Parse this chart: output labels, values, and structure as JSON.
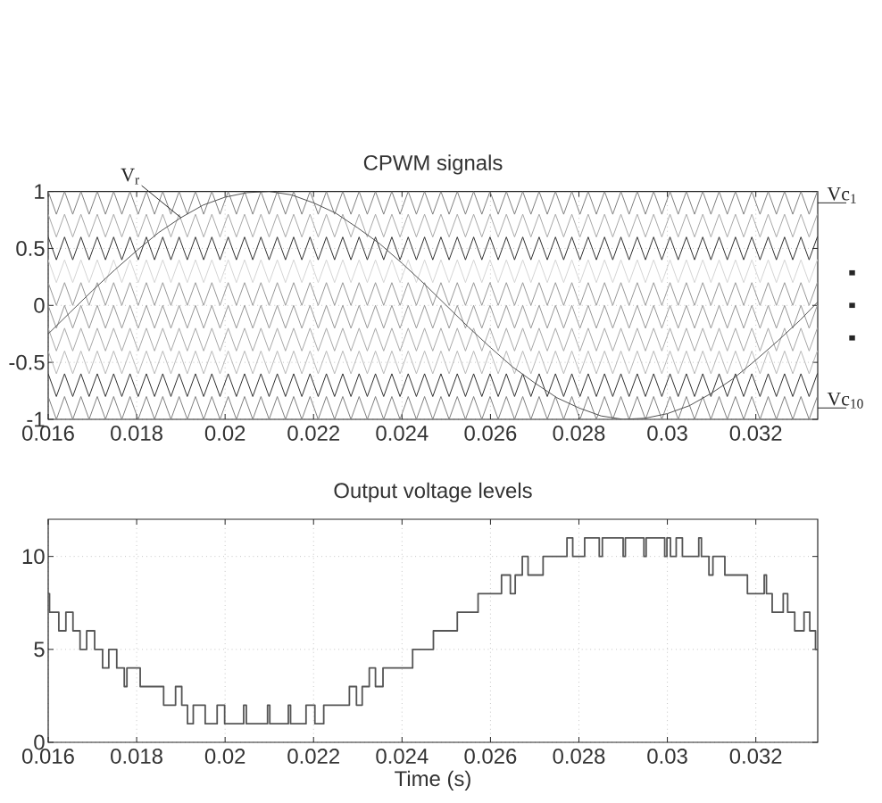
{
  "chart_data": [
    {
      "type": "line",
      "title": "CPWM signals",
      "x": [
        0.016,
        0.016185,
        0.01637,
        0.016555,
        0.01674,
        0.016925,
        0.01711,
        0.017295,
        0.01748,
        0.017665,
        0.01785,
        0.018035,
        0.01822,
        0.018405,
        0.01859,
        0.018775,
        0.01896,
        0.019145,
        0.01933,
        0.019515,
        0.0197,
        0.019885,
        0.02007,
        0.020255,
        0.02044,
        0.020625,
        0.02081,
        0.020995,
        0.02118,
        0.021365,
        0.02155,
        0.021735,
        0.02192,
        0.022105,
        0.02229,
        0.022475,
        0.02266,
        0.022845,
        0.02303,
        0.023215,
        0.0234,
        0.023585,
        0.02377,
        0.023955,
        0.02414,
        0.024325,
        0.02451,
        0.024695,
        0.02488,
        0.025065,
        0.02525,
        0.025435,
        0.02562,
        0.025805,
        0.02599,
        0.026175,
        0.02636,
        0.026545,
        0.02673,
        0.026915,
        0.0271,
        0.027285,
        0.02747,
        0.027655,
        0.02784,
        0.028025,
        0.02821,
        0.028395,
        0.02858,
        0.028765,
        0.02895,
        0.029135,
        0.02932,
        0.029505,
        0.02969,
        0.029875,
        0.03006,
        0.030245,
        0.03043,
        0.030615,
        0.0308,
        0.030985,
        0.03117,
        0.031355,
        0.03154,
        0.031725,
        0.03191,
        0.032095,
        0.03228,
        0.032465,
        0.03265,
        0.032835,
        0.03302,
        0.033205,
        0.03339
      ],
      "xlim": [
        0.016,
        0.0334
      ],
      "xticks": [
        0.016,
        0.018,
        0.02,
        0.022,
        0.024,
        0.026,
        0.028,
        0.03,
        0.032
      ],
      "ylim": [
        -1,
        1
      ],
      "yticks": [
        -1,
        -0.5,
        0,
        0.5,
        1
      ],
      "grid": true,
      "annotations": [
        "· · ·"
      ],
      "series": [
        {
          "name": "Vc$_{1}$",
          "color": "#808080",
          "values": [
            1,
            0.8,
            1,
            0.8,
            1,
            0.8,
            1,
            0.8,
            1,
            0.8,
            1,
            0.8,
            1,
            0.8,
            1,
            0.8,
            1,
            0.8,
            1,
            0.8,
            1,
            0.8,
            1,
            0.8,
            1,
            0.8,
            1,
            0.8,
            1,
            0.8,
            1,
            0.8,
            1,
            0.8,
            1,
            0.8,
            1,
            0.8,
            1,
            0.8,
            1,
            0.8,
            1,
            0.8,
            1,
            0.8,
            1,
            0.8,
            1,
            0.8,
            1,
            0.8,
            1,
            0.8,
            1,
            0.8,
            1,
            0.8,
            1,
            0.8,
            1,
            0.8,
            1,
            0.8,
            1,
            0.8,
            1,
            0.8,
            1,
            0.8,
            1,
            0.8,
            1,
            0.8,
            1,
            0.8,
            1,
            0.8,
            1,
            0.8,
            1,
            0.8,
            1,
            0.8,
            1,
            0.8,
            1,
            0.8,
            1,
            0.8,
            1,
            0.8,
            1,
            0.8,
            1
          ]
        },
        {
          "color": "#a8a8a8",
          "values": [
            0.8,
            0.6,
            0.8,
            0.6,
            0.8,
            0.6,
            0.8,
            0.6,
            0.8,
            0.6,
            0.8,
            0.6,
            0.8,
            0.6,
            0.8,
            0.6,
            0.8,
            0.6,
            0.8,
            0.6,
            0.8,
            0.6,
            0.8,
            0.6,
            0.8,
            0.6,
            0.8,
            0.6,
            0.8,
            0.6,
            0.8,
            0.6,
            0.8,
            0.6,
            0.8,
            0.6,
            0.8,
            0.6,
            0.8,
            0.6,
            0.8,
            0.6,
            0.8,
            0.6,
            0.8,
            0.6,
            0.8,
            0.6,
            0.8,
            0.6,
            0.8,
            0.6,
            0.8,
            0.6,
            0.8,
            0.6,
            0.8,
            0.6,
            0.8,
            0.6,
            0.8,
            0.6,
            0.8,
            0.6,
            0.8,
            0.6,
            0.8,
            0.6,
            0.8,
            0.6,
            0.8,
            0.6,
            0.8,
            0.6,
            0.8,
            0.6,
            0.8,
            0.6,
            0.8,
            0.6,
            0.8,
            0.6,
            0.8,
            0.6,
            0.8,
            0.6,
            0.8,
            0.6,
            0.8,
            0.6,
            0.8,
            0.6,
            0.8,
            0.6,
            0.8
          ]
        },
        {
          "color": "#303030",
          "values": [
            0.6,
            0.4,
            0.6,
            0.4,
            0.6,
            0.4,
            0.6,
            0.4,
            0.6,
            0.4,
            0.6,
            0.4,
            0.6,
            0.4,
            0.6,
            0.4,
            0.6,
            0.4,
            0.6,
            0.4,
            0.6,
            0.4,
            0.6,
            0.4,
            0.6,
            0.4,
            0.6,
            0.4,
            0.6,
            0.4,
            0.6,
            0.4,
            0.6,
            0.4,
            0.6,
            0.4,
            0.6,
            0.4,
            0.6,
            0.4,
            0.6,
            0.4,
            0.6,
            0.4,
            0.6,
            0.4,
            0.6,
            0.4,
            0.6,
            0.4,
            0.6,
            0.4,
            0.6,
            0.4,
            0.6,
            0.4,
            0.6,
            0.4,
            0.6,
            0.4,
            0.6,
            0.4,
            0.6,
            0.4,
            0.6,
            0.4,
            0.6,
            0.4,
            0.6,
            0.4,
            0.6,
            0.4,
            0.6,
            0.4,
            0.6,
            0.4,
            0.6,
            0.4,
            0.6,
            0.4,
            0.6,
            0.4,
            0.6,
            0.4,
            0.6,
            0.4,
            0.6,
            0.4,
            0.6,
            0.4,
            0.6,
            0.4,
            0.6,
            0.4,
            0.6
          ]
        },
        {
          "color": "#d4d4d4",
          "values": [
            0.4,
            0.2,
            0.4,
            0.2,
            0.4,
            0.2,
            0.4,
            0.2,
            0.4,
            0.2,
            0.4,
            0.2,
            0.4,
            0.2,
            0.4,
            0.2,
            0.4,
            0.2,
            0.4,
            0.2,
            0.4,
            0.2,
            0.4,
            0.2,
            0.4,
            0.2,
            0.4,
            0.2,
            0.4,
            0.2,
            0.4,
            0.2,
            0.4,
            0.2,
            0.4,
            0.2,
            0.4,
            0.2,
            0.4,
            0.2,
            0.4,
            0.2,
            0.4,
            0.2,
            0.4,
            0.2,
            0.4,
            0.2,
            0.4,
            0.2,
            0.4,
            0.2,
            0.4,
            0.2,
            0.4,
            0.2,
            0.4,
            0.2,
            0.4,
            0.2,
            0.4,
            0.2,
            0.4,
            0.2,
            0.4,
            0.2,
            0.4,
            0.2,
            0.4,
            0.2,
            0.4,
            0.2,
            0.4,
            0.2,
            0.4,
            0.2,
            0.4,
            0.2,
            0.4,
            0.2,
            0.4,
            0.2,
            0.4,
            0.2,
            0.4,
            0.2,
            0.4,
            0.2,
            0.4,
            0.2,
            0.4,
            0.2,
            0.4,
            0.2,
            0.4
          ]
        },
        {
          "color": "#989898",
          "values": [
            0.2,
            0,
            0.2,
            0,
            0.2,
            0,
            0.2,
            0,
            0.2,
            0,
            0.2,
            0,
            0.2,
            0,
            0.2,
            0,
            0.2,
            0,
            0.2,
            0,
            0.2,
            0,
            0.2,
            0,
            0.2,
            0,
            0.2,
            0,
            0.2,
            0,
            0.2,
            0,
            0.2,
            0,
            0.2,
            0,
            0.2,
            0,
            0.2,
            0,
            0.2,
            0,
            0.2,
            0,
            0.2,
            0,
            0.2,
            0,
            0.2,
            0,
            0.2,
            0,
            0.2,
            0,
            0.2,
            0,
            0.2,
            0,
            0.2,
            0,
            0.2,
            0,
            0.2,
            0,
            0.2,
            0,
            0.2,
            0,
            0.2,
            0,
            0.2,
            0,
            0.2,
            0,
            0.2,
            0,
            0.2,
            0,
            0.2,
            0,
            0.2,
            0,
            0.2,
            0,
            0.2,
            0,
            0.2,
            0,
            0.2,
            0,
            0.2,
            0,
            0.2,
            0,
            0.2
          ]
        },
        {
          "color": "#989898",
          "values": [
            0,
            -0.2,
            0,
            -0.2,
            0,
            -0.2,
            0,
            -0.2,
            0,
            -0.2,
            0,
            -0.2,
            0,
            -0.2,
            0,
            -0.2,
            0,
            -0.2,
            0,
            -0.2,
            0,
            -0.2,
            0,
            -0.2,
            0,
            -0.2,
            0,
            -0.2,
            0,
            -0.2,
            0,
            -0.2,
            0,
            -0.2,
            0,
            -0.2,
            0,
            -0.2,
            0,
            -0.2,
            0,
            -0.2,
            0,
            -0.2,
            0,
            -0.2,
            0,
            -0.2,
            0,
            -0.2,
            0,
            -0.2,
            0,
            -0.2,
            0,
            -0.2,
            0,
            -0.2,
            0,
            -0.2,
            0,
            -0.2,
            0,
            -0.2,
            0,
            -0.2,
            0,
            -0.2,
            0,
            -0.2,
            0,
            -0.2,
            0,
            -0.2,
            0,
            -0.2,
            0,
            -0.2,
            0,
            -0.2,
            0,
            -0.2,
            0,
            -0.2,
            0,
            -0.2,
            0,
            -0.2,
            0,
            -0.2,
            0,
            -0.2,
            0,
            -0.2,
            0
          ]
        },
        {
          "color": "#a8a8a8",
          "values": [
            -0.2,
            -0.4,
            -0.2,
            -0.4,
            -0.2,
            -0.4,
            -0.2,
            -0.4,
            -0.2,
            -0.4,
            -0.2,
            -0.4,
            -0.2,
            -0.4,
            -0.2,
            -0.4,
            -0.2,
            -0.4,
            -0.2,
            -0.4,
            -0.2,
            -0.4,
            -0.2,
            -0.4,
            -0.2,
            -0.4,
            -0.2,
            -0.4,
            -0.2,
            -0.4,
            -0.2,
            -0.4,
            -0.2,
            -0.4,
            -0.2,
            -0.4,
            -0.2,
            -0.4,
            -0.2,
            -0.4,
            -0.2,
            -0.4,
            -0.2,
            -0.4,
            -0.2,
            -0.4,
            -0.2,
            -0.4,
            -0.2,
            -0.4,
            -0.2,
            -0.4,
            -0.2,
            -0.4,
            -0.2,
            -0.4,
            -0.2,
            -0.4,
            -0.2,
            -0.4,
            -0.2,
            -0.4,
            -0.2,
            -0.4,
            -0.2,
            -0.4,
            -0.2,
            -0.4,
            -0.2,
            -0.4,
            -0.2,
            -0.4,
            -0.2,
            -0.4,
            -0.2,
            -0.4,
            -0.2,
            -0.4,
            -0.2,
            -0.4,
            -0.2,
            -0.4,
            -0.2,
            -0.4,
            -0.2,
            -0.4,
            -0.2,
            -0.4,
            -0.2,
            -0.4,
            -0.2,
            -0.4,
            -0.2,
            -0.4,
            -0.2
          ]
        },
        {
          "color": "#b8b8b8",
          "values": [
            -0.4,
            -0.6,
            -0.4,
            -0.6,
            -0.4,
            -0.6,
            -0.4,
            -0.6,
            -0.4,
            -0.6,
            -0.4,
            -0.6,
            -0.4,
            -0.6,
            -0.4,
            -0.6,
            -0.4,
            -0.6,
            -0.4,
            -0.6,
            -0.4,
            -0.6,
            -0.4,
            -0.6,
            -0.4,
            -0.6,
            -0.4,
            -0.6,
            -0.4,
            -0.6,
            -0.4,
            -0.6,
            -0.4,
            -0.6,
            -0.4,
            -0.6,
            -0.4,
            -0.6,
            -0.4,
            -0.6,
            -0.4,
            -0.6,
            -0.4,
            -0.6,
            -0.4,
            -0.6,
            -0.4,
            -0.6,
            -0.4,
            -0.6,
            -0.4,
            -0.6,
            -0.4,
            -0.6,
            -0.4,
            -0.6,
            -0.4,
            -0.6,
            -0.4,
            -0.6,
            -0.4,
            -0.6,
            -0.4,
            -0.6,
            -0.4,
            -0.6,
            -0.4,
            -0.6,
            -0.4,
            -0.6,
            -0.4,
            -0.6,
            -0.4,
            -0.6,
            -0.4,
            -0.6,
            -0.4,
            -0.6,
            -0.4,
            -0.6,
            -0.4,
            -0.6,
            -0.4,
            -0.6,
            -0.4,
            -0.6,
            -0.4,
            -0.6,
            -0.4,
            -0.6,
            -0.4,
            -0.6,
            -0.4,
            -0.6,
            -0.4
          ]
        },
        {
          "color": "#303030",
          "values": [
            -0.6,
            -0.8,
            -0.6,
            -0.8,
            -0.6,
            -0.8,
            -0.6,
            -0.8,
            -0.6,
            -0.8,
            -0.6,
            -0.8,
            -0.6,
            -0.8,
            -0.6,
            -0.8,
            -0.6,
            -0.8,
            -0.6,
            -0.8,
            -0.6,
            -0.8,
            -0.6,
            -0.8,
            -0.6,
            -0.8,
            -0.6,
            -0.8,
            -0.6,
            -0.8,
            -0.6,
            -0.8,
            -0.6,
            -0.8,
            -0.6,
            -0.8,
            -0.6,
            -0.8,
            -0.6,
            -0.8,
            -0.6,
            -0.8,
            -0.6,
            -0.8,
            -0.6,
            -0.8,
            -0.6,
            -0.8,
            -0.6,
            -0.8,
            -0.6,
            -0.8,
            -0.6,
            -0.8,
            -0.6,
            -0.8,
            -0.6,
            -0.8,
            -0.6,
            -0.8,
            -0.6,
            -0.8,
            -0.6,
            -0.8,
            -0.6,
            -0.8,
            -0.6,
            -0.8,
            -0.6,
            -0.8,
            -0.6,
            -0.8,
            -0.6,
            -0.8,
            -0.6,
            -0.8,
            -0.6,
            -0.8,
            -0.6,
            -0.8,
            -0.6,
            -0.8,
            -0.6,
            -0.8,
            -0.6,
            -0.8,
            -0.6,
            -0.8,
            -0.6,
            -0.8,
            -0.6,
            -0.8,
            -0.6,
            -0.8,
            -0.6
          ]
        },
        {
          "name": "Vc$_{10}$",
          "color": "#808080",
          "values": [
            -0.8,
            -1,
            -0.8,
            -1,
            -0.8,
            -1,
            -0.8,
            -1,
            -0.8,
            -1,
            -0.8,
            -1,
            -0.8,
            -1,
            -0.8,
            -1,
            -0.8,
            -1,
            -0.8,
            -1,
            -0.8,
            -1,
            -0.8,
            -1,
            -0.8,
            -1,
            -0.8,
            -1,
            -0.8,
            -1,
            -0.8,
            -1,
            -0.8,
            -1,
            -0.8,
            -1,
            -0.8,
            -1,
            -0.8,
            -1,
            -0.8,
            -1,
            -0.8,
            -1,
            -0.8,
            -1,
            -0.8,
            -1,
            -0.8,
            -1,
            -0.8,
            -1,
            -0.8,
            -1,
            -0.8,
            -1,
            -0.8,
            -1,
            -0.8,
            -1,
            -0.8,
            -1,
            -0.8,
            -1,
            -0.8,
            -1,
            -0.8,
            -1,
            -0.8,
            -1,
            -0.8,
            -1,
            -0.8,
            -1,
            -0.8,
            -1,
            -0.8,
            -1,
            -0.8,
            -1,
            -0.8,
            -1,
            -0.8,
            -1,
            -0.8,
            -1,
            -0.8,
            -1,
            -0.8,
            -1,
            -0.8,
            -1,
            -0.8,
            -1,
            -0.8
          ]
        },
        {
          "name": "V$_{r}$",
          "color": "#505050",
          "x": [
            0.016,
            0.0165,
            0.017,
            0.0175,
            0.018,
            0.0185,
            0.019,
            0.0195,
            0.02,
            0.0205,
            0.021,
            0.0215,
            0.022,
            0.0225,
            0.023,
            0.0235,
            0.024,
            0.0245,
            0.025,
            0.0255,
            0.026,
            0.0265,
            0.027,
            0.0275,
            0.028,
            0.0285,
            0.029,
            0.0295,
            0.03,
            0.0305,
            0.031,
            0.0315,
            0.032,
            0.0325,
            0.033,
            0.0334
          ],
          "values": [
            -0.25,
            -0.06,
            0.13,
            0.31,
            0.48,
            0.64,
            0.77,
            0.88,
            0.95,
            0.99,
            1,
            0.97,
            0.9,
            0.81,
            0.68,
            0.54,
            0.37,
            0.19,
            0,
            -0.19,
            -0.37,
            -0.54,
            -0.68,
            -0.81,
            -0.9,
            -0.97,
            -1,
            -0.99,
            -0.95,
            -0.88,
            -0.77,
            -0.64,
            -0.48,
            -0.31,
            -0.13,
            0.03
          ]
        }
      ]
    },
    {
      "type": "step",
      "title": "Output voltage levels",
      "xlabel": "Time (s)",
      "color": "#555555",
      "x": [
        0.016,
        0.01603,
        0.01624,
        0.0164,
        0.01656,
        0.01672,
        0.01687,
        0.01705,
        0.01723,
        0.01737,
        0.01755,
        0.01772,
        0.01778,
        0.01808,
        0.01861,
        0.01888,
        0.01902,
        0.01915,
        0.01928,
        0.01955,
        0.01982,
        0.01999,
        0.02042,
        0.02048,
        0.02096,
        0.02101,
        0.02143,
        0.02148,
        0.02183,
        0.02203,
        0.02223,
        0.02281,
        0.02297,
        0.0231,
        0.02326,
        0.0234,
        0.02357,
        0.02424,
        0.02471,
        0.02525,
        0.02572,
        0.02625,
        0.02645,
        0.02656,
        0.02672,
        0.02685,
        0.02719,
        0.02773,
        0.02786,
        0.02813,
        0.02846,
        0.02853,
        0.029,
        0.02905,
        0.02947,
        0.02952,
        0.02994,
        0.02999,
        0.03007,
        0.0302,
        0.03034,
        0.03071,
        0.03077,
        0.03094,
        0.03103,
        0.0313,
        0.03181,
        0.03219,
        0.03224,
        0.03237,
        0.03262,
        0.03272,
        0.03288,
        0.03309,
        0.03322,
        0.03335,
        0.03339
      ],
      "values": [
        8,
        7,
        6,
        7,
        6,
        5,
        6,
        5,
        4,
        5,
        4,
        3,
        4,
        3,
        2,
        3,
        2,
        1,
        2,
        1,
        2,
        1,
        2,
        1,
        2,
        1,
        2,
        1,
        2,
        1,
        2,
        3,
        2,
        3,
        4,
        3,
        4,
        5,
        6,
        7,
        8,
        9,
        8,
        9,
        10,
        9,
        10,
        11,
        10,
        11,
        10,
        11,
        10,
        11,
        10,
        11,
        10,
        11,
        10,
        11,
        10,
        11,
        10,
        9,
        10,
        9,
        8,
        9,
        8,
        7,
        8,
        7,
        6,
        7,
        6,
        5,
        5
      ],
      "xlim": [
        0.016,
        0.0334
      ],
      "xticks": [
        0.016,
        0.018,
        0.02,
        0.022,
        0.024,
        0.026,
        0.028,
        0.03,
        0.032
      ],
      "ylim": [
        0,
        12
      ],
      "yticks": [
        0,
        5,
        10
      ],
      "grid": true
    }
  ]
}
